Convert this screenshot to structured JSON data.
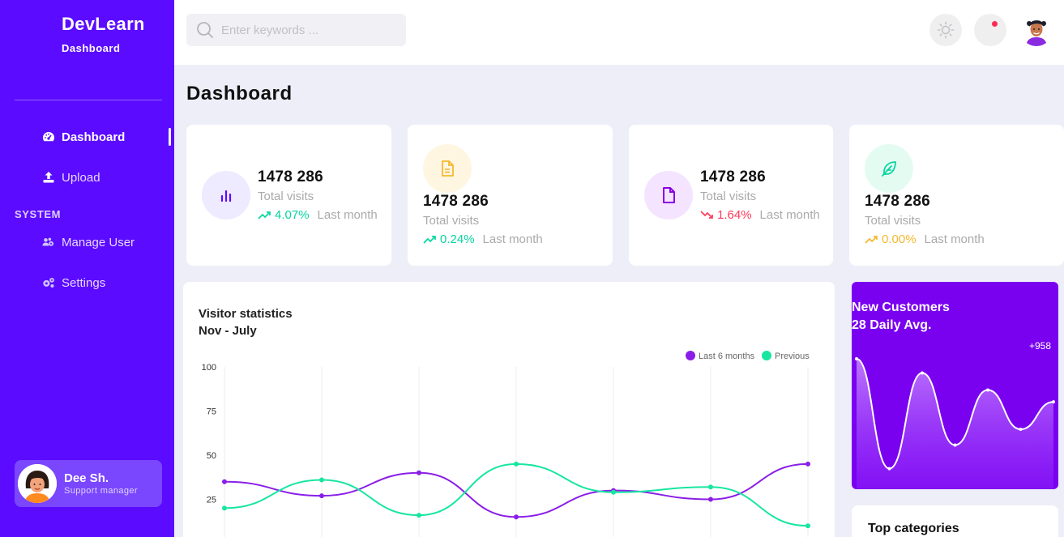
{
  "sidebar": {
    "brand": "DevLearn",
    "subtitle": "Dashboard",
    "items": [
      {
        "label": "Dashboard",
        "icon": "gauge-icon",
        "active": true
      },
      {
        "label": "Upload",
        "icon": "upload-icon",
        "active": false
      }
    ],
    "section_label": "SYSTEM",
    "system_items": [
      {
        "label": "Manage User",
        "icon": "users-gear-icon"
      },
      {
        "label": "Settings",
        "icon": "gears-icon"
      }
    ],
    "user": {
      "name": "Dee Sh.",
      "role": "Support manager"
    }
  },
  "header": {
    "search_placeholder": "Enter keywords ..."
  },
  "page": {
    "title": "Dashboard"
  },
  "stats": [
    {
      "value": "1478 286",
      "label": "Total visits",
      "change": "4.07%",
      "direction": "up",
      "period": "Last month",
      "icon": "bar-chart-icon",
      "color": "#06d6a0"
    },
    {
      "value": "1478 286",
      "label": "Total visits",
      "change": "0.24%",
      "direction": "up",
      "period": "Last month",
      "icon": "file-icon",
      "color": "#06d6a0"
    },
    {
      "value": "1478 286",
      "label": "Total visits",
      "change": "1.64%",
      "direction": "down",
      "period": "Last month",
      "icon": "document-icon",
      "color": "#ff3b5c"
    },
    {
      "value": "1478 286",
      "label": "Total visits",
      "change": "0.00%",
      "direction": "up",
      "period": "Last month",
      "icon": "feather-icon",
      "color": "#f5b82e"
    }
  ],
  "colors": {
    "accent": "#5b0bff",
    "purple_series": "#8a1ee8",
    "green_series": "#17e6a1",
    "customers_bg": "#7a00f0"
  },
  "chart_data": {
    "type": "line",
    "title": "Visitor statistics",
    "subtitle": "Nov - July",
    "ylim": [
      0,
      100
    ],
    "yticks": [
      25,
      50,
      75,
      100
    ],
    "series": [
      {
        "name": "Last 6 months",
        "values": [
          35,
          27,
          40,
          15,
          30,
          25,
          45
        ]
      },
      {
        "name": "Previous",
        "values": [
          20,
          36,
          16,
          45,
          29,
          32,
          10
        ]
      }
    ]
  },
  "customers": {
    "title": "New Customers",
    "subtitle": "28 Daily Avg.",
    "peak_label": "+958",
    "values": [
      958,
      120,
      850,
      300,
      720,
      420,
      630
    ]
  },
  "categories": {
    "title": "Top categories"
  }
}
